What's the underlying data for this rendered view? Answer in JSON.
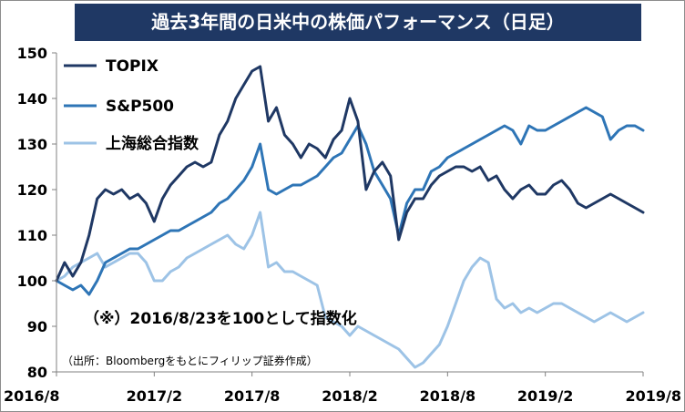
{
  "chart_data": {
    "type": "line",
    "title": "過去3年間の日米中の株価パフォーマンス（日足）",
    "note": "（※）2016/8/23を100として指数化",
    "source": "（出所：Bloombergをもとにフィリップ証券作成）",
    "x_ticks": [
      "2016/8",
      "2017/2",
      "2017/8",
      "2018/2",
      "2018/8",
      "2019/2",
      "2019/8"
    ],
    "xlim": [
      "2016/8",
      "2019/8"
    ],
    "ylim": [
      80,
      150
    ],
    "y_ticks": [
      80,
      90,
      100,
      110,
      120,
      130,
      140,
      150
    ],
    "grid": false,
    "legend_position": "top-left",
    "series": [
      {
        "name": "TOPIX",
        "color": "#1f3864",
        "x": [
          0.0,
          0.5,
          1.0,
          1.5,
          2.0,
          2.5,
          3.0,
          3.5,
          4.0,
          4.5,
          5.0,
          5.5,
          6.0,
          6.5,
          7.0,
          7.5,
          8.0,
          8.5,
          9.0,
          9.5,
          10.0,
          10.5,
          11.0,
          11.5,
          12.0,
          12.5,
          13.0,
          13.5,
          14.0,
          14.5,
          15.0,
          15.5,
          16.0,
          16.5,
          17.0,
          17.5,
          18.0,
          18.5,
          19.0,
          19.5,
          20.0,
          20.5,
          21.0,
          21.5,
          22.0,
          22.5,
          23.0,
          23.5,
          24.0,
          24.5,
          25.0,
          25.5,
          26.0,
          26.5,
          27.0,
          27.5,
          28.0,
          28.5,
          29.0,
          29.5,
          30.0,
          30.5,
          31.0,
          31.5,
          32.0,
          32.5,
          33.0,
          33.5,
          34.0,
          34.5,
          35.0,
          35.5,
          36.0
        ],
        "values": [
          100,
          104,
          101,
          104,
          110,
          118,
          120,
          119,
          120,
          118,
          119,
          117,
          113,
          118,
          121,
          123,
          125,
          126,
          125,
          126,
          132,
          135,
          140,
          143,
          146,
          147,
          135,
          138,
          132,
          130,
          127,
          130,
          129,
          127,
          131,
          133,
          140,
          135,
          120,
          124,
          126,
          123,
          109,
          115,
          118,
          118,
          121,
          123,
          124,
          125,
          125,
          124,
          125,
          122,
          123,
          120,
          118,
          120,
          121,
          119,
          119,
          121,
          122,
          120,
          117,
          116,
          117,
          118,
          119,
          118,
          117,
          116,
          115
        ]
      },
      {
        "name": "S&P500",
        "color": "#2e75b6",
        "x": [
          0.0,
          0.5,
          1.0,
          1.5,
          2.0,
          2.5,
          3.0,
          3.5,
          4.0,
          4.5,
          5.0,
          5.5,
          6.0,
          6.5,
          7.0,
          7.5,
          8.0,
          8.5,
          9.0,
          9.5,
          10.0,
          10.5,
          11.0,
          11.5,
          12.0,
          12.5,
          13.0,
          13.5,
          14.0,
          14.5,
          15.0,
          15.5,
          16.0,
          16.5,
          17.0,
          17.5,
          18.0,
          18.5,
          19.0,
          19.5,
          20.0,
          20.5,
          21.0,
          21.5,
          22.0,
          22.5,
          23.0,
          23.5,
          24.0,
          24.5,
          25.0,
          25.5,
          26.0,
          26.5,
          27.0,
          27.5,
          28.0,
          28.5,
          29.0,
          29.5,
          30.0,
          30.5,
          31.0,
          31.5,
          32.0,
          32.5,
          33.0,
          33.5,
          34.0,
          34.5,
          35.0,
          35.5,
          36.0
        ],
        "values": [
          100,
          99,
          98,
          99,
          97,
          100,
          104,
          105,
          106,
          107,
          107,
          108,
          109,
          110,
          111,
          111,
          112,
          113,
          114,
          115,
          117,
          118,
          120,
          122,
          125,
          130,
          120,
          119,
          120,
          121,
          121,
          122,
          123,
          125,
          127,
          128,
          131,
          134,
          130,
          124,
          121,
          118,
          110,
          117,
          120,
          120,
          124,
          125,
          127,
          128,
          129,
          130,
          131,
          132,
          133,
          134,
          133,
          130,
          134,
          133,
          133,
          134,
          135,
          136,
          137,
          138,
          137,
          136,
          131,
          133,
          134,
          134,
          133
        ]
      },
      {
        "name": "上海総合指数",
        "color": "#9dc3e6",
        "x": [
          0.0,
          0.5,
          1.0,
          1.5,
          2.0,
          2.5,
          3.0,
          3.5,
          4.0,
          4.5,
          5.0,
          5.5,
          6.0,
          6.5,
          7.0,
          7.5,
          8.0,
          8.5,
          9.0,
          9.5,
          10.0,
          10.5,
          11.0,
          11.5,
          12.0,
          12.5,
          13.0,
          13.5,
          14.0,
          14.5,
          15.0,
          15.5,
          16.0,
          16.5,
          17.0,
          17.5,
          18.0,
          18.5,
          19.0,
          19.5,
          20.0,
          20.5,
          21.0,
          21.5,
          22.0,
          22.5,
          23.0,
          23.5,
          24.0,
          24.5,
          25.0,
          25.5,
          26.0,
          26.5,
          27.0,
          27.5,
          28.0,
          28.5,
          29.0,
          29.5,
          30.0,
          30.5,
          31.0,
          31.5,
          32.0,
          32.5,
          33.0,
          33.5,
          34.0,
          34.5,
          35.0,
          35.5,
          36.0
        ],
        "values": [
          100,
          101,
          103,
          104,
          105,
          106,
          103,
          104,
          105,
          106,
          106,
          104,
          100,
          100,
          102,
          103,
          105,
          106,
          107,
          108,
          109,
          110,
          108,
          107,
          110,
          115,
          103,
          104,
          102,
          102,
          101,
          100,
          99,
          92,
          91,
          90,
          88,
          90,
          89,
          88,
          87,
          86,
          85,
          83,
          81,
          82,
          84,
          86,
          90,
          95,
          100,
          103,
          105,
          104,
          96,
          94,
          95,
          93,
          94,
          93,
          94,
          95,
          95,
          94,
          93,
          92,
          91,
          92,
          93,
          92,
          91,
          92,
          93
        ]
      }
    ]
  }
}
